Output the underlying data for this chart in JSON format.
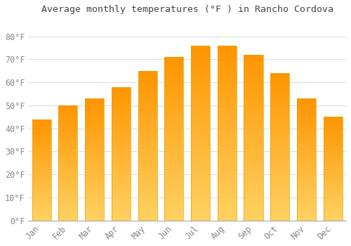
{
  "months": [
    "Jan",
    "Feb",
    "Mar",
    "Apr",
    "May",
    "Jun",
    "Jul",
    "Aug",
    "Sep",
    "Oct",
    "Nov",
    "Dec"
  ],
  "values": [
    44,
    50,
    53,
    58,
    65,
    71,
    76,
    76,
    72,
    64,
    53,
    45
  ],
  "bar_color_top": "#FFA500",
  "bar_color_bottom": "#FFD060",
  "bar_edge_color": "#E8A000",
  "title": "Average monthly temperatures (°F ) in Rancho Cordova",
  "ylim": [
    0,
    88
  ],
  "yticks": [
    0,
    10,
    20,
    30,
    40,
    50,
    60,
    70,
    80
  ],
  "ytick_labels": [
    "0°F",
    "10°F",
    "20°F",
    "30°F",
    "40°F",
    "50°F",
    "60°F",
    "70°F",
    "80°F"
  ],
  "background_color": "#ffffff",
  "plot_bg_color": "#ffffff",
  "grid_color": "#dddddd",
  "title_fontsize": 9.5,
  "tick_fontsize": 8.5,
  "tick_color": "#888888",
  "title_color": "#444444",
  "bar_width": 0.72
}
